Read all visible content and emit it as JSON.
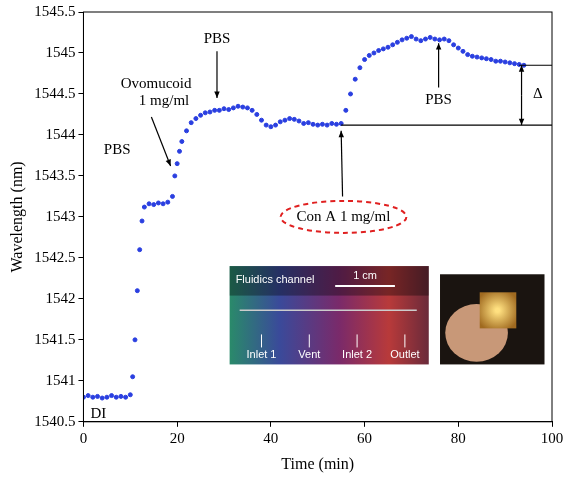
{
  "chart_data": {
    "type": "scatter",
    "x_label": "Time (min)",
    "y_label": "Wavelength (nm)",
    "color": "#2a3fe0",
    "marker": "circle",
    "grid": false,
    "xlim": [
      0,
      100
    ],
    "xticks": [
      0,
      20,
      40,
      60,
      80,
      100
    ],
    "ylim": [
      1540.5,
      1545.5
    ],
    "yticks": [
      1540.5,
      1541,
      1541.5,
      1542,
      1542.5,
      1543,
      1543.5,
      1544,
      1544.5,
      1545,
      1545.5
    ],
    "x": [
      0,
      1,
      2,
      3,
      4,
      5,
      6,
      7,
      8,
      9,
      10,
      10.5,
      11,
      11.5,
      12,
      12.5,
      13,
      14,
      15,
      16,
      17,
      18,
      19,
      19.5,
      20,
      20.5,
      21,
      22,
      23,
      24,
      25,
      26,
      27,
      28,
      29,
      30,
      31,
      32,
      33,
      34,
      35,
      36,
      37,
      38,
      39,
      40,
      41,
      42,
      43,
      44,
      45,
      46,
      47,
      48,
      49,
      50,
      51,
      52,
      53,
      54,
      55,
      56,
      57,
      58,
      59,
      60,
      61,
      62,
      63,
      64,
      65,
      66,
      67,
      68,
      69,
      70,
      71,
      72,
      73,
      74,
      75,
      76,
      77,
      78,
      79,
      80,
      81,
      82,
      83,
      84,
      85,
      86,
      87,
      88,
      89,
      90,
      91,
      92,
      93,
      94
    ],
    "values": [
      1540.8,
      1540.82,
      1540.8,
      1540.81,
      1540.79,
      1540.8,
      1540.82,
      1540.8,
      1540.81,
      1540.8,
      1540.83,
      1541.05,
      1541.5,
      1542.1,
      1542.6,
      1542.95,
      1543.12,
      1543.16,
      1543.15,
      1543.17,
      1543.16,
      1543.18,
      1543.25,
      1543.5,
      1543.65,
      1543.8,
      1543.92,
      1544.05,
      1544.15,
      1544.2,
      1544.24,
      1544.27,
      1544.28,
      1544.3,
      1544.3,
      1544.32,
      1544.31,
      1544.33,
      1544.35,
      1544.34,
      1544.33,
      1544.3,
      1544.25,
      1544.18,
      1544.12,
      1544.1,
      1544.12,
      1544.16,
      1544.18,
      1544.2,
      1544.19,
      1544.17,
      1544.14,
      1544.15,
      1544.13,
      1544.12,
      1544.13,
      1544.12,
      1544.14,
      1544.13,
      1544.14,
      1544.3,
      1544.5,
      1544.68,
      1544.82,
      1544.92,
      1544.97,
      1545.0,
      1545.03,
      1545.05,
      1545.07,
      1545.1,
      1545.13,
      1545.16,
      1545.18,
      1545.2,
      1545.17,
      1545.15,
      1545.17,
      1545.19,
      1545.17,
      1545.16,
      1545.17,
      1545.15,
      1545.1,
      1545.06,
      1545.02,
      1544.98,
      1544.96,
      1544.95,
      1544.94,
      1544.93,
      1544.92,
      1544.9,
      1544.9,
      1544.89,
      1544.88,
      1544.87,
      1544.86,
      1544.85
    ],
    "annotations": [
      "DI",
      "PBS",
      "Ovomucoid 1 mg/ml",
      "PBS",
      "Con A 1 mg/ml",
      "PBS",
      "Δ"
    ],
    "inset_labels": [
      "Fluidics channel",
      "1 cm",
      "Inlet 1",
      "Vent",
      "Inlet 2",
      "Outlet"
    ]
  }
}
